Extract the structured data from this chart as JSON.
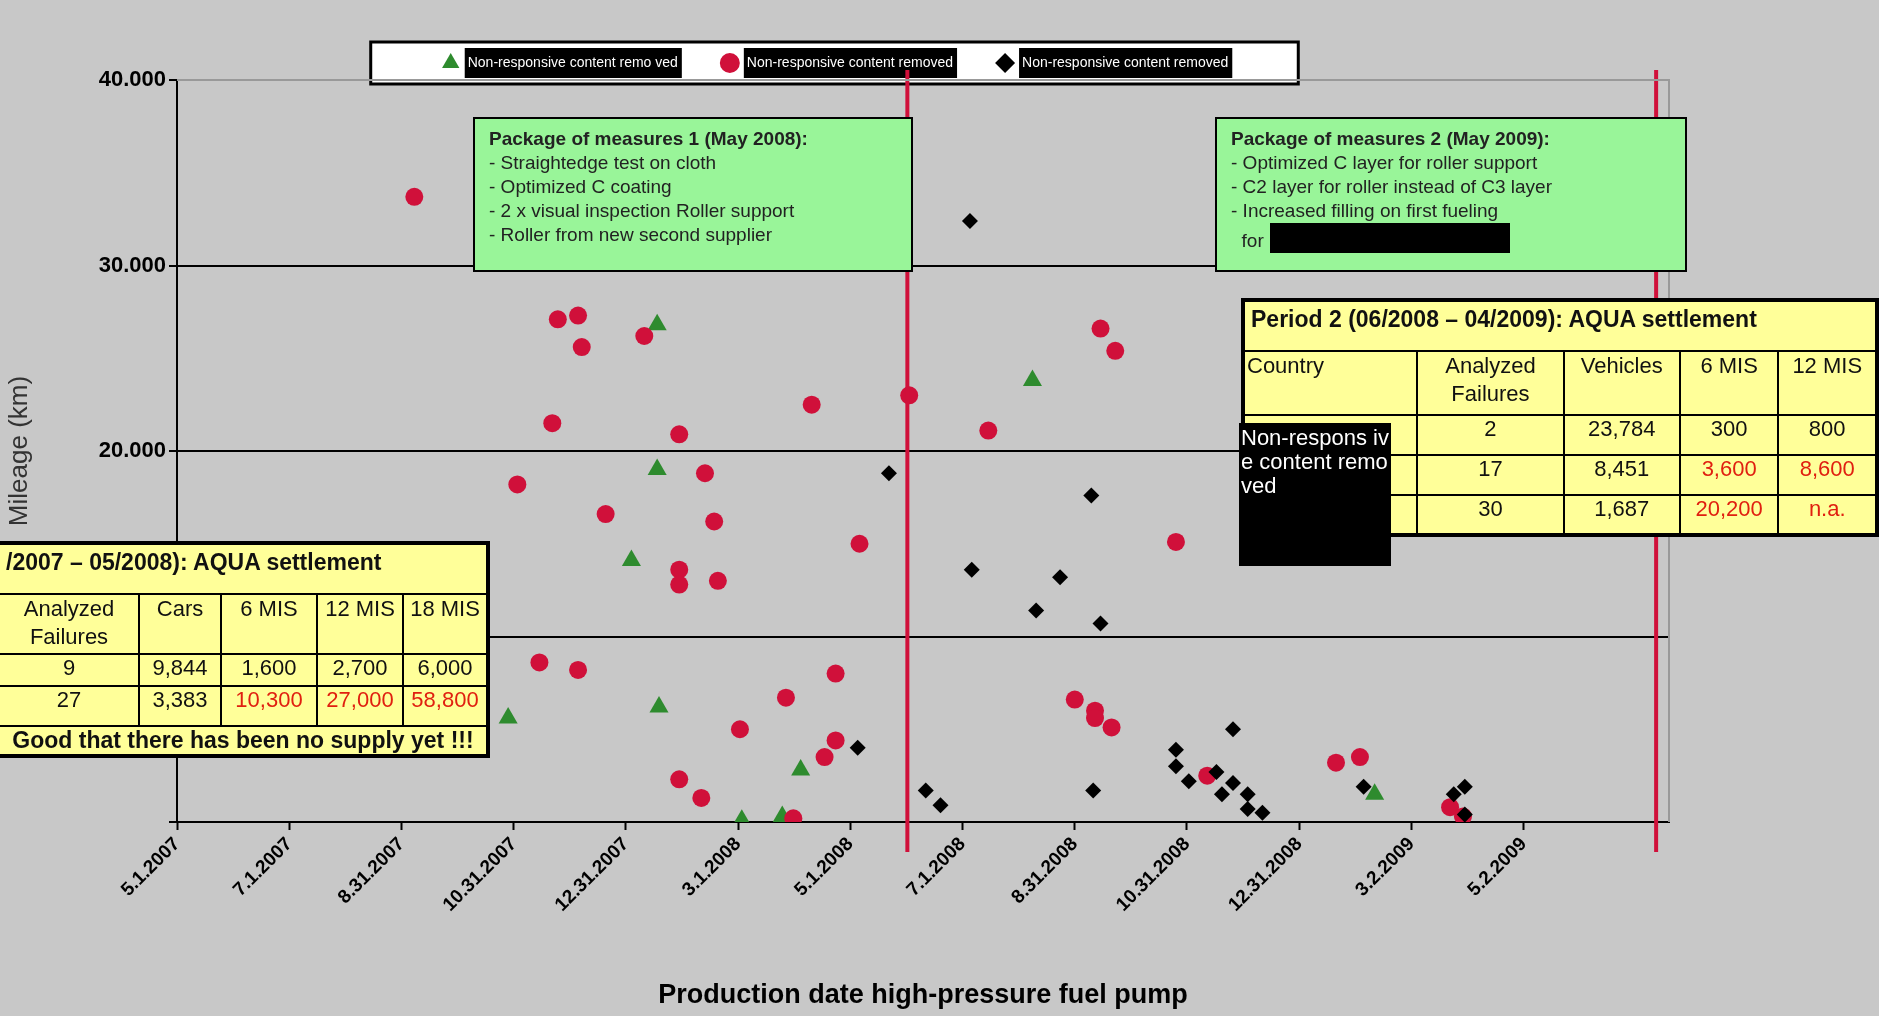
{
  "chart_data": {
    "type": "scatter",
    "xlabel": "Production date high-pressure fuel pump",
    "ylabel": "Mileage (km)",
    "legend": "top",
    "grid": "y",
    "xlim": [
      "2007-05-01",
      "2009-07-20"
    ],
    "ylim": [
      0,
      40000
    ],
    "xticks": [
      {
        "value": "2007-05-01",
        "label": "5.1.2007"
      },
      {
        "value": "2007-07-01",
        "label": "7.1.2007"
      },
      {
        "value": "2007-08-31",
        "label": "8.31.2007"
      },
      {
        "value": "2007-10-31",
        "label": "10.31.2007"
      },
      {
        "value": "2007-12-31",
        "label": "12.31.2007"
      },
      {
        "value": "2008-03-01",
        "label": "3.1.2008"
      },
      {
        "value": "2008-05-01",
        "label": "5.1.2008"
      },
      {
        "value": "2008-07-01",
        "label": "7.1.2008"
      },
      {
        "value": "2008-08-31",
        "label": "8.31.2008"
      },
      {
        "value": "2008-10-31",
        "label": "10.31.2008"
      },
      {
        "value": "2008-12-31",
        "label": "12.31.2008"
      },
      {
        "value": "2009-03-02",
        "label": "3.2.2009"
      },
      {
        "value": "2009-05-02",
        "label": "5.2.2009"
      }
    ],
    "yticks": [
      {
        "value": 0,
        "label": null
      },
      {
        "value": 10000,
        "label": null
      },
      {
        "value": 20000,
        "label": "20.000"
      },
      {
        "value": 30000,
        "label": "30.000"
      },
      {
        "value": 40000,
        "label": "40.000"
      }
    ],
    "ref_lines": [
      {
        "axis": "x",
        "value": "2008-06-01",
        "color": "#d0103a"
      },
      {
        "axis": "x",
        "value": "2009-07-13",
        "color": "#d0103a"
      }
    ],
    "series": [
      {
        "name": "Non-responsive content remo ved",
        "color": "#2e8b2e",
        "marker": "triangle",
        "x": [
          "2008-01-17",
          "2008-01-17",
          "2008-01-03",
          "2007-10-28",
          "2008-01-18",
          "2008-04-04",
          "2008-03-03",
          "2008-03-25",
          "2008-08-08",
          "2009-02-10"
        ],
        "values": [
          26800,
          19000,
          14100,
          5600,
          6200,
          2800,
          100,
          300,
          23800,
          1500
        ]
      },
      {
        "name": "Non-responsive content removed",
        "color": "#d0103a",
        "marker": "circle",
        "x": [
          "2007-09-07",
          "2007-11-24",
          "2007-12-05",
          "2007-12-07",
          "2008-01-10",
          "2007-11-21",
          "2008-01-29",
          "2008-04-10",
          "2008-06-02",
          "2007-11-02",
          "2008-02-12",
          "2007-12-20",
          "2008-02-17",
          "2008-05-06",
          "2008-01-29",
          "2008-01-29",
          "2008-02-19",
          "2007-11-14",
          "2007-12-05",
          "2008-03-27",
          "2008-04-23",
          "2008-03-02",
          "2008-04-23",
          "2008-04-17",
          "2008-01-29",
          "2008-02-10",
          "2008-03-31",
          "2008-07-15",
          "2008-09-14",
          "2008-09-22",
          "2008-10-25",
          "2008-08-31",
          "2008-09-11",
          "2008-09-11",
          "2008-09-20",
          "2008-11-11",
          "2009-01-20",
          "2009-02-02",
          "2009-03-23",
          "2009-03-30"
        ],
        "values": [
          33700,
          27100,
          27300,
          25600,
          26200,
          21500,
          20900,
          22500,
          23000,
          18200,
          18800,
          16600,
          16200,
          15000,
          13600,
          12800,
          13000,
          8600,
          8200,
          6700,
          8000,
          5000,
          4400,
          3500,
          2300,
          1300,
          200,
          21100,
          26600,
          25400,
          15100,
          6600,
          6000,
          5600,
          5100,
          2500,
          3200,
          3500,
          800,
          300
        ]
      },
      {
        "name": "Non-responsive content removed",
        "color": "#000000",
        "marker": "diamond",
        "x": [
          "2008-05-22",
          "2008-05-05",
          "2008-07-05",
          "2008-07-06",
          "2008-08-23",
          "2008-08-10",
          "2008-09-14",
          "2008-09-09",
          "2008-06-11",
          "2008-06-19",
          "2008-09-10",
          "2008-10-25",
          "2008-10-25",
          "2008-11-01",
          "2008-11-16",
          "2008-11-25",
          "2008-11-25",
          "2008-11-19",
          "2008-12-03",
          "2008-12-03",
          "2008-12-11",
          "2009-02-04",
          "2009-03-25",
          "2009-03-31",
          "2009-03-31"
        ],
        "values": [
          18800,
          4000,
          32400,
          13600,
          13200,
          11400,
          10700,
          17600,
          1700,
          900,
          1700,
          3900,
          3000,
          2200,
          2700,
          5000,
          2100,
          1500,
          1500,
          700,
          500,
          1900,
          1500,
          1900,
          400
        ]
      }
    ],
    "annotations": [
      "Package of measures 1 (May 2008):\n- Straightedge test on cloth\n- Optimized C coating\n- 2 x visual inspection Roller support\n- Roller from new second supplier",
      "Package of measures 2 (May 2009):\n- Optimized C layer for roller support\n- C2 layer for roller instead of C3 layer\n- Increased filling on first fueling\n  for",
      "/2007 – 05/2008): AQUA settlement",
      "Analyzed Failures",
      "Cars",
      "6 MIS",
      "12 MIS",
      "18 MIS",
      "9",
      "9,844",
      "1,600",
      "2,700",
      "6,000",
      "27",
      "3,383",
      "10,300",
      "27,000",
      "58,800",
      "Good that there has been no supply yet !!!",
      "Period 2 (06/2008 – 04/2009): AQUA settlement",
      "Country",
      "Analyzed Failures",
      "Vehicles",
      "6 MIS",
      "12 MIS",
      "2",
      "23,784",
      "300",
      "800",
      "17",
      "8,451",
      "3,600",
      "8,600",
      "30",
      "1,687",
      "20,200",
      "n.a.",
      "Non-respons ive content removed"
    ]
  }
}
